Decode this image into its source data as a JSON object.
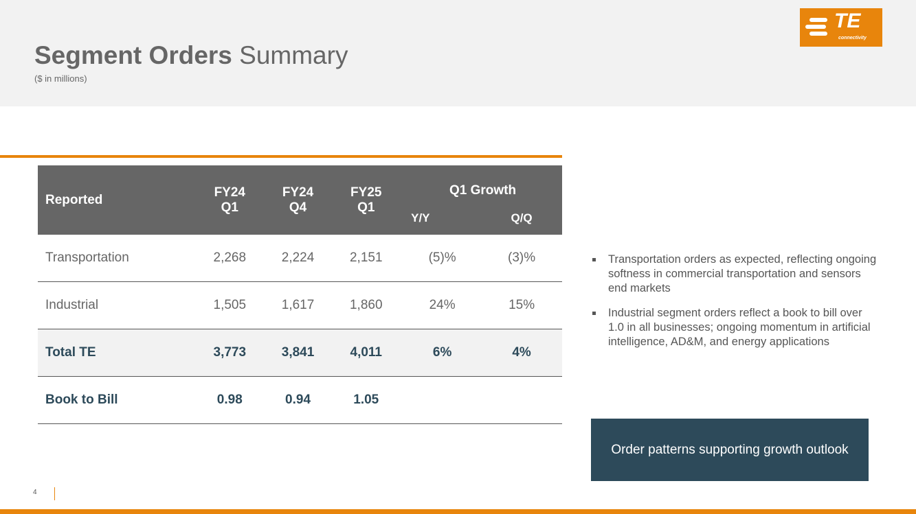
{
  "header": {
    "title_bold": "Segment Orders",
    "title_rest": "Summary",
    "subtitle": "($ in millions)",
    "logo_text": "TE",
    "logo_sub": "connectivity"
  },
  "table": {
    "headers": {
      "reported": "Reported",
      "c1a": "FY24",
      "c1b": "Q1",
      "c2a": "FY24",
      "c2b": "Q4",
      "c3a": "FY25",
      "c3b": "Q1",
      "growth": "Q1 Growth",
      "yy": "Y/Y",
      "qq": "Q/Q"
    },
    "rows": [
      [
        "Transportation",
        "2,268",
        "2,224",
        "2,151",
        "(5)%",
        "(3)%"
      ],
      [
        "Industrial",
        "1,505",
        "1,617",
        "1,860",
        "24%",
        "15%"
      ],
      [
        "Total TE",
        "3,773",
        "3,841",
        "4,011",
        "6%",
        "4%"
      ],
      [
        "Book to Bill",
        "0.98",
        "0.94",
        "1.05",
        "",
        ""
      ]
    ]
  },
  "bullets": [
    "Transportation orders as expected, reflecting ongoing softness in commercial transportation and sensors end markets",
    "Industrial segment orders reflect a book to bill over 1.0 in all businesses; ongoing momentum in artificial intelligence, AD&M, and energy applications"
  ],
  "callout": "Order patterns supporting growth outlook",
  "page_number": "4"
}
